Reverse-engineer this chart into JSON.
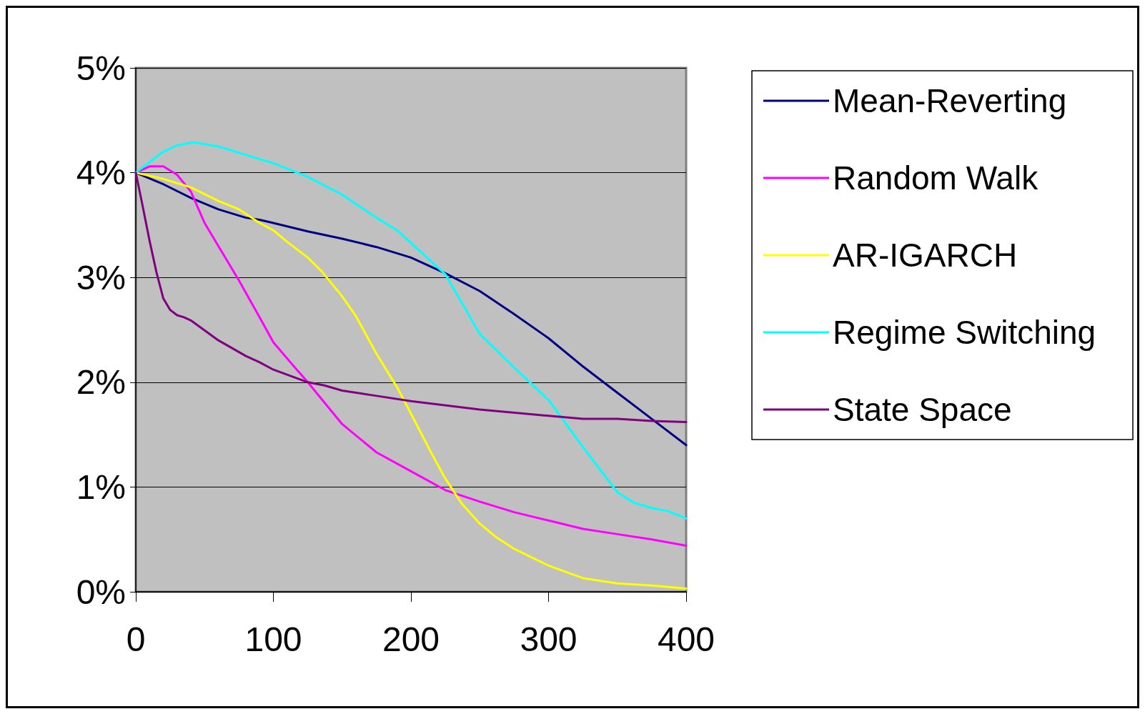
{
  "chart_data": {
    "type": "line",
    "xlim": [
      0,
      400
    ],
    "xticks": [
      0,
      100,
      200,
      300,
      400
    ],
    "ylim": [
      0,
      5
    ],
    "yticks": [
      {
        "value": 0,
        "label": "0%"
      },
      {
        "value": 1,
        "label": "1%"
      },
      {
        "value": 2,
        "label": "2%"
      },
      {
        "value": 3,
        "label": "3%"
      },
      {
        "value": 4,
        "label": "4%"
      },
      {
        "value": 5,
        "label": "5%"
      }
    ],
    "grid": "y",
    "legend": "right",
    "marker": "none",
    "series": [
      {
        "name": "Mean-Reverting",
        "color": "#000080",
        "x": [
          0,
          20,
          40,
          60,
          80,
          90,
          100,
          125,
          150,
          175,
          200,
          225,
          250,
          275,
          300,
          325,
          350,
          375,
          400
        ],
        "values": [
          4,
          3.89,
          3.76,
          3.65,
          3.57,
          3.55,
          3.52,
          3.44,
          3.37,
          3.29,
          3.19,
          3.04,
          2.87,
          2.65,
          2.42,
          2.15,
          1.9,
          1.65,
          1.4
        ]
      },
      {
        "name": "Random Walk",
        "color": "#ff00ff",
        "x": [
          0,
          10,
          20,
          30,
          40,
          50,
          75,
          90,
          100,
          115,
          125,
          150,
          175,
          200,
          225,
          250,
          275,
          300,
          325,
          350,
          375,
          400
        ],
        "values": [
          4,
          4.06,
          4.06,
          3.98,
          3.82,
          3.52,
          2.97,
          2.62,
          2.38,
          2.15,
          2.0,
          1.6,
          1.33,
          1.15,
          0.97,
          0.86,
          0.76,
          0.68,
          0.6,
          0.55,
          0.5,
          0.44
        ]
      },
      {
        "name": "AR-IGARCH",
        "color": "#ffff00",
        "x": [
          0,
          20,
          40,
          60,
          75,
          90,
          100,
          110,
          125,
          135,
          150,
          160,
          175,
          190,
          200,
          215,
          225,
          237,
          250,
          262,
          275,
          300,
          325,
          350,
          375,
          400
        ],
        "values": [
          4,
          3.94,
          3.86,
          3.73,
          3.65,
          3.52,
          3.45,
          3.34,
          3.19,
          3.06,
          2.82,
          2.63,
          2.27,
          1.95,
          1.7,
          1.32,
          1.08,
          0.84,
          0.65,
          0.52,
          0.41,
          0.25,
          0.13,
          0.08,
          0.06,
          0.03
        ]
      },
      {
        "name": "Regime Switching",
        "color": "#00ffff",
        "x": [
          0,
          20,
          30,
          42,
          60,
          80,
          100,
          125,
          150,
          175,
          190,
          200,
          225,
          250,
          275,
          300,
          325,
          350,
          362,
          375,
          387,
          400
        ],
        "values": [
          4,
          4.2,
          4.26,
          4.29,
          4.25,
          4.17,
          4.09,
          3.96,
          3.79,
          3.57,
          3.45,
          3.33,
          3.03,
          2.46,
          2.14,
          1.83,
          1.38,
          0.95,
          0.85,
          0.8,
          0.77,
          0.7
        ]
      },
      {
        "name": "State Space",
        "color": "#800080",
        "x": [
          0,
          5,
          10,
          15,
          20,
          25,
          30,
          35,
          40,
          60,
          80,
          90,
          100,
          125,
          137,
          150,
          175,
          200,
          250,
          300,
          325,
          350,
          375,
          400
        ],
        "values": [
          4,
          3.68,
          3.35,
          3.05,
          2.8,
          2.69,
          2.64,
          2.62,
          2.59,
          2.4,
          2.25,
          2.19,
          2.12,
          2.0,
          1.97,
          1.92,
          1.87,
          1.82,
          1.74,
          1.68,
          1.65,
          1.65,
          1.63,
          1.62
        ]
      }
    ]
  }
}
